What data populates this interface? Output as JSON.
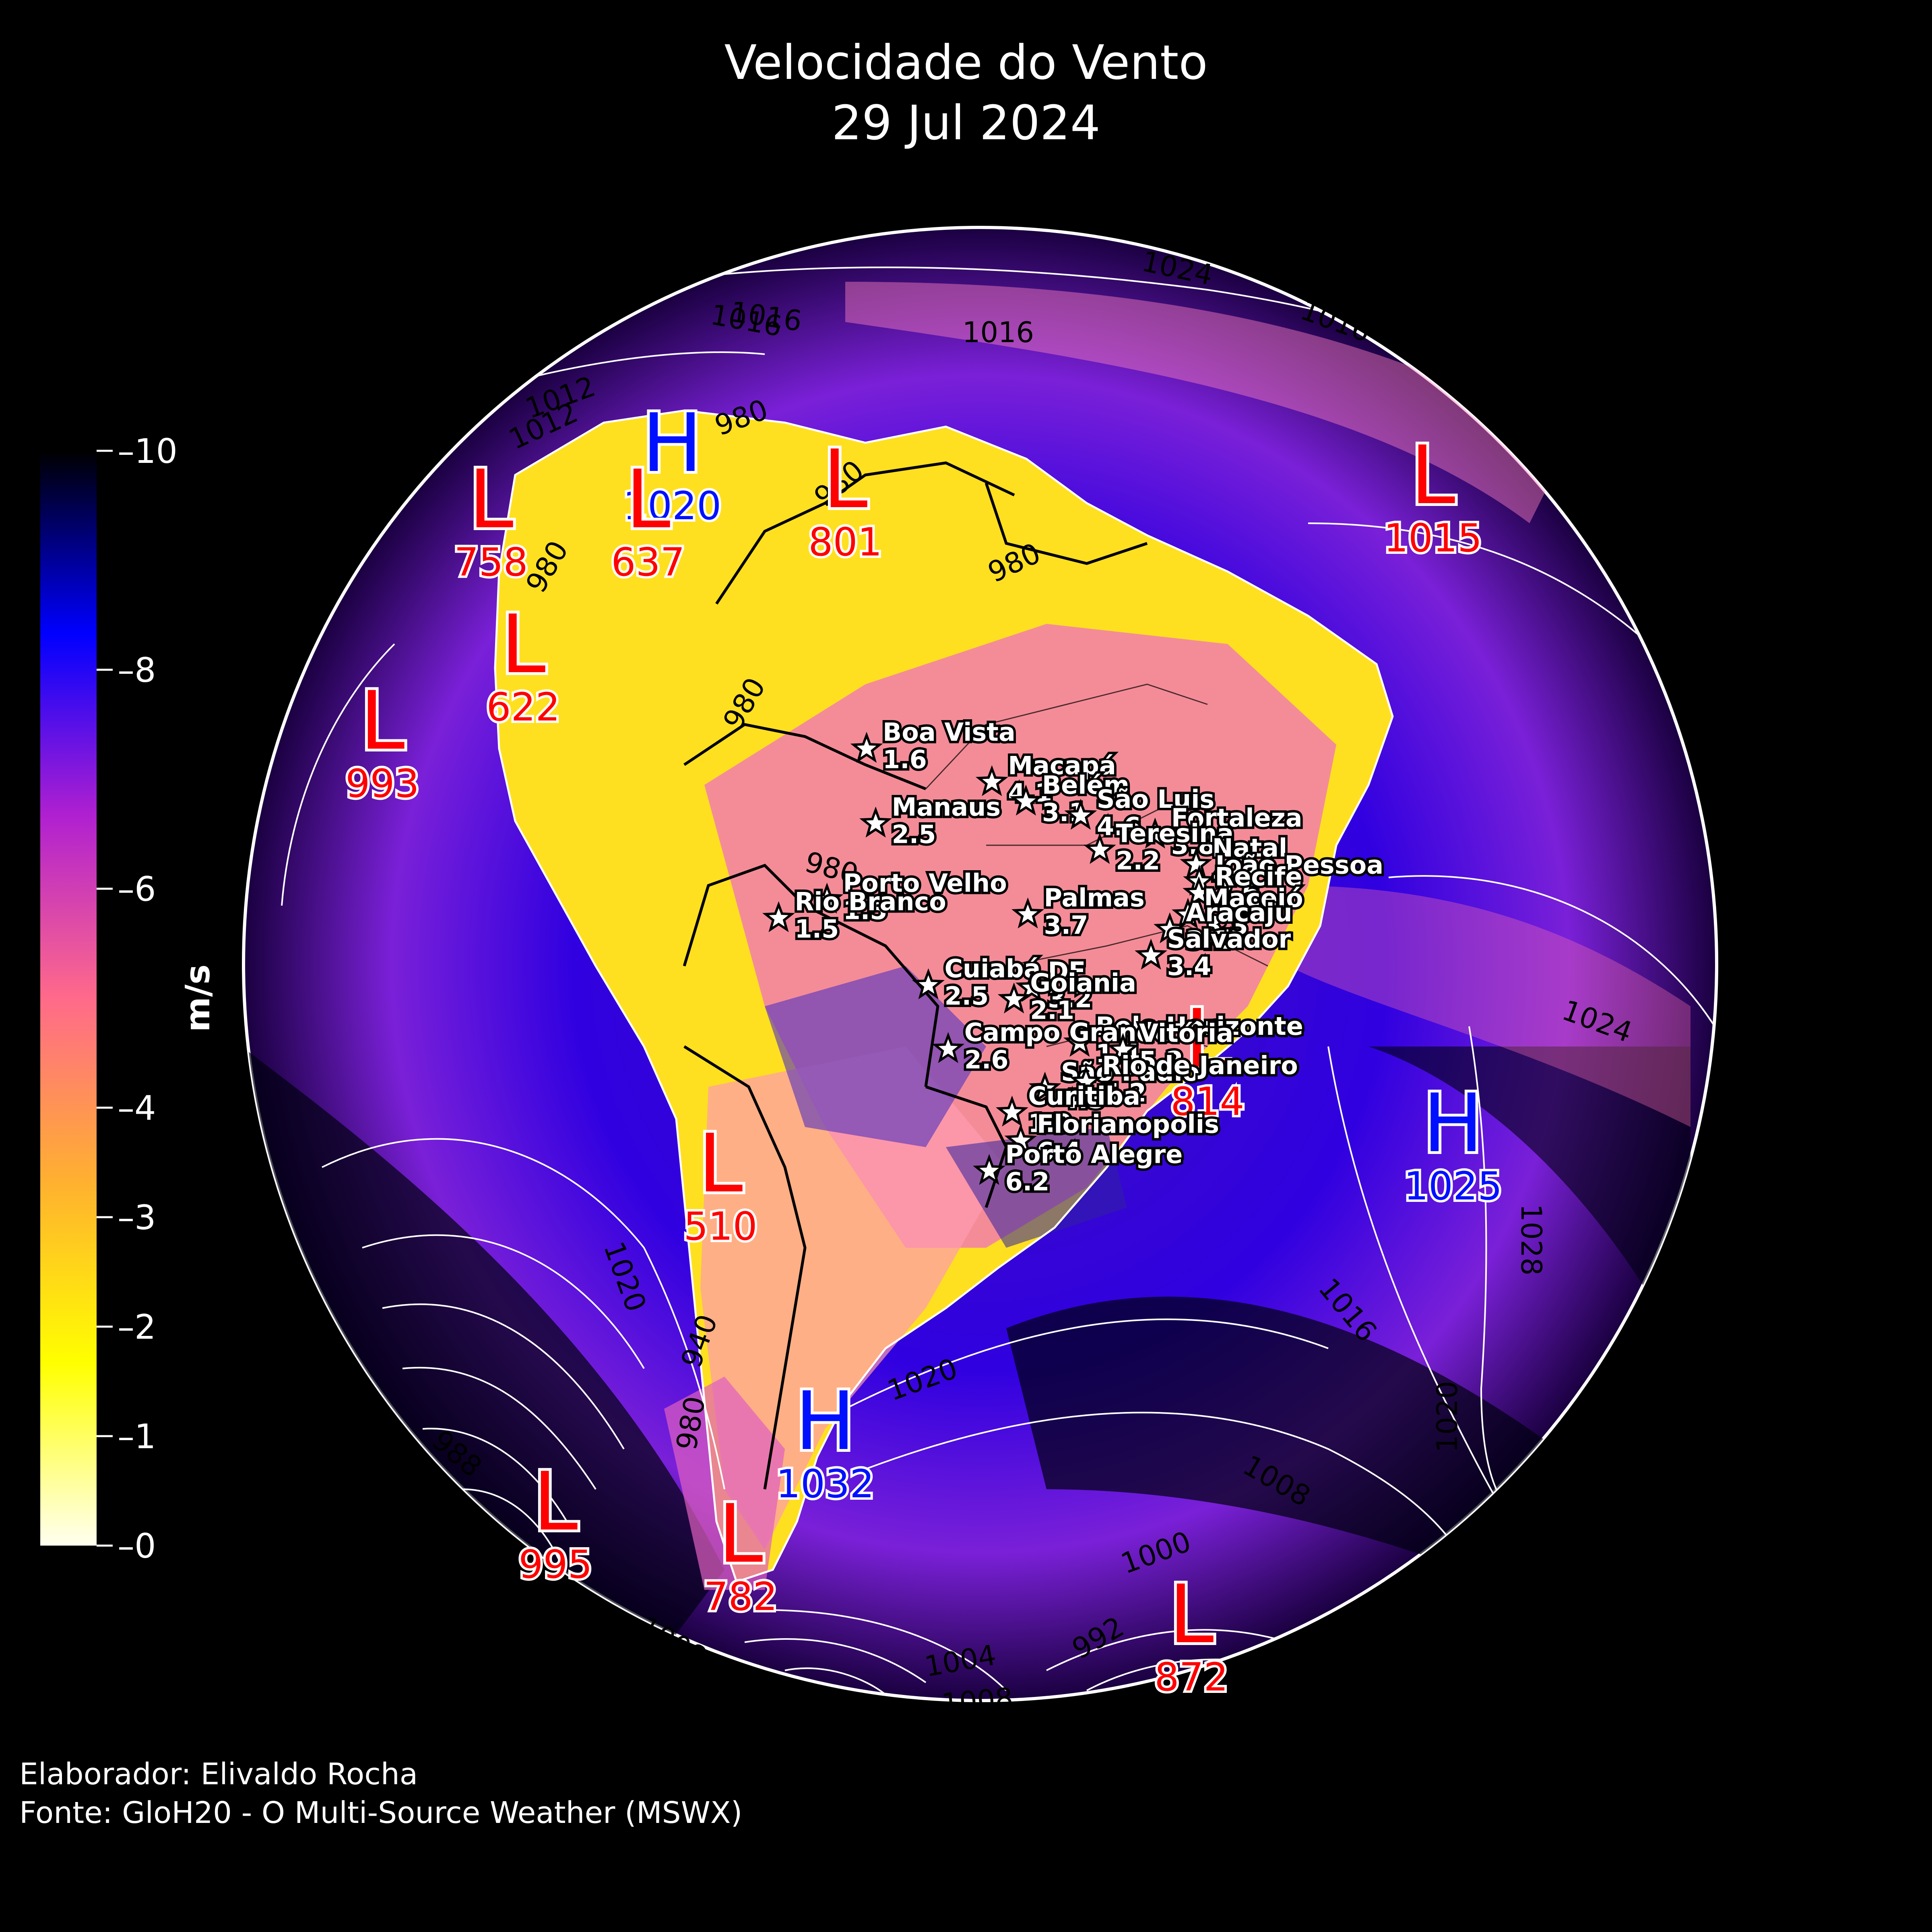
{
  "title": {
    "line1": "Velocidade do Vento",
    "line2": "29 Jul 2024"
  },
  "credits": {
    "author": "Elaborador: Elivaldo Rocha",
    "source": "Fonte: GloH20 - O Multi-Source Weather (MSWX)"
  },
  "colorbar": {
    "unit": "m/s",
    "min": 0,
    "max": 10,
    "ticks": [
      {
        "value": 0,
        "label": "0"
      },
      {
        "value": 1,
        "label": "1"
      },
      {
        "value": 2,
        "label": "2"
      },
      {
        "value": 3,
        "label": "3"
      },
      {
        "value": 4,
        "label": "4"
      },
      {
        "value": 6,
        "label": "6"
      },
      {
        "value": 8,
        "label": "8"
      },
      {
        "value": 10,
        "label": "10"
      }
    ],
    "colors": [
      "#fffff0",
      "#ffff00",
      "#ffb030",
      "#ff6a8a",
      "#b020d0",
      "#0000ff",
      "#000000"
    ]
  },
  "chart_data": {
    "type": "map",
    "variable": "Velocidade do Vento",
    "date": "29 Jul 2024",
    "unit": "m/s",
    "cities": [
      {
        "name": "Boa Vista",
        "value": "1.6",
        "lon": -60.7,
        "lat": 2.8
      },
      {
        "name": "Macapá",
        "value": "4.1",
        "lon": -51.1,
        "lat": 0.0
      },
      {
        "name": "Belém",
        "value": "3.1",
        "lon": -48.5,
        "lat": -1.5
      },
      {
        "name": "São Luis",
        "value": "4.6",
        "lon": -44.3,
        "lat": -2.5
      },
      {
        "name": "Fortaleza",
        "value": "3.8",
        "lon": -38.5,
        "lat": -3.7
      },
      {
        "name": "Manaus",
        "value": "2.5",
        "lon": -60.0,
        "lat": -3.1
      },
      {
        "name": "Teresina",
        "value": "2.2",
        "lon": -42.8,
        "lat": -5.1
      },
      {
        "name": "Natal",
        "value": "4.1",
        "lon": -35.2,
        "lat": -5.8
      },
      {
        "name": "João Pessoa",
        "value": "3.6",
        "lon": -34.9,
        "lat": -7.1
      },
      {
        "name": "Recife",
        "value": "4.9",
        "lon": -34.9,
        "lat": -8.0
      },
      {
        "name": "Porto Velho",
        "value": "1.5",
        "lon": -63.9,
        "lat": -8.8
      },
      {
        "name": "Maceió",
        "value": "3.3",
        "lon": -35.7,
        "lat": -9.7
      },
      {
        "name": "Palmas",
        "value": "3.7",
        "lon": -48.3,
        "lat": -10.2
      },
      {
        "name": "Aracaju",
        "value": "3.1",
        "lon": -37.1,
        "lat": -10.9
      },
      {
        "name": "Rio Branco",
        "value": "1.5",
        "lon": -67.8,
        "lat": -10.0
      },
      {
        "name": "Salvador",
        "value": "3.4",
        "lon": -38.5,
        "lat": -13.0
      },
      {
        "name": "Cuiabá",
        "value": "2.5",
        "lon": -56.1,
        "lat": -15.6
      },
      {
        "name": "DF",
        "value": "3.2",
        "lon": -47.9,
        "lat": -15.8
      },
      {
        "name": "Goiania",
        "value": "2.1",
        "lon": -49.3,
        "lat": -16.7
      },
      {
        "name": "Belo Horizonte",
        "value": "1.4",
        "lon": -43.9,
        "lat": -19.9
      },
      {
        "name": "Campo Grande",
        "value": "2.6",
        "lon": -54.6,
        "lat": -20.5
      },
      {
        "name": "Vitória",
        "value": "5.2",
        "lon": -40.3,
        "lat": -20.3
      },
      {
        "name": "São Paulo",
        "value": "4.5",
        "lon": -46.6,
        "lat": -23.5
      },
      {
        "name": "Rio de Janeiro",
        "value": "5.2",
        "lon": -43.2,
        "lat": -22.9
      },
      {
        "name": "Curitiba",
        "value": "1.9",
        "lon": -49.3,
        "lat": -25.4
      },
      {
        "name": "Florianopolis",
        "value": "6.4",
        "lon": -48.5,
        "lat": -27.6
      },
      {
        "name": "Porto Alegre",
        "value": "6.2",
        "lon": -51.2,
        "lat": -30.0
      }
    ],
    "pressure_centers": [
      {
        "type": "H",
        "value": "1020"
      },
      {
        "type": "L",
        "value": "637"
      },
      {
        "type": "L",
        "value": "758"
      },
      {
        "type": "L",
        "value": "801"
      },
      {
        "type": "L",
        "value": "1015"
      },
      {
        "type": "L",
        "value": "622"
      },
      {
        "type": "L",
        "value": "993"
      },
      {
        "type": "L",
        "value": "814"
      },
      {
        "type": "H",
        "value": "1025"
      },
      {
        "type": "L",
        "value": "510"
      },
      {
        "type": "H",
        "value": "1032"
      },
      {
        "type": "L",
        "value": "995"
      },
      {
        "type": "L",
        "value": "782"
      },
      {
        "type": "L",
        "value": "872"
      }
    ],
    "isobar_labels": [
      "1024",
      "1016",
      "1016",
      "980",
      "1012",
      "980",
      "980",
      "980",
      "980",
      "980",
      "940",
      "1024",
      "1016",
      "1020",
      "1028",
      "1020",
      "1020",
      "1016",
      "1008",
      "1000",
      "992",
      "1004",
      "1008",
      "1008",
      "940",
      "980",
      "988",
      "1012",
      "1016"
    ]
  }
}
